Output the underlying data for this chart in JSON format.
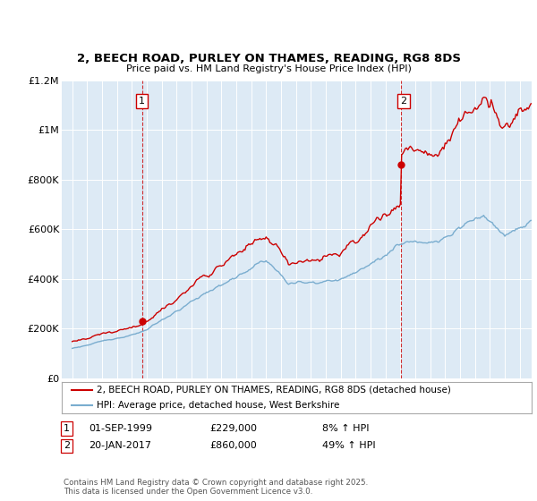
{
  "title": "2, BEECH ROAD, PURLEY ON THAMES, READING, RG8 8DS",
  "subtitle": "Price paid vs. HM Land Registry's House Price Index (HPI)",
  "legend_line1": "2, BEECH ROAD, PURLEY ON THAMES, READING, RG8 8DS (detached house)",
  "legend_line2": "HPI: Average price, detached house, West Berkshire",
  "annotation1_label": "1",
  "annotation1_date": "01-SEP-1999",
  "annotation1_price": "£229,000",
  "annotation1_hpi": "8% ↑ HPI",
  "annotation2_label": "2",
  "annotation2_date": "20-JAN-2017",
  "annotation2_price": "£860,000",
  "annotation2_hpi": "49% ↑ HPI",
  "footer": "Contains HM Land Registry data © Crown copyright and database right 2025.\nThis data is licensed under the Open Government Licence v3.0.",
  "price_color": "#cc0000",
  "hpi_color": "#7aadcf",
  "background_color": "#ddeaf5",
  "ylim_min": 0,
  "ylim_max": 1200000,
  "xlim_min": 1994.3,
  "xlim_max": 2025.8,
  "yticks": [
    0,
    200000,
    400000,
    600000,
    800000,
    1000000,
    1200000
  ],
  "ytick_labels": [
    "£0",
    "£200K",
    "£400K",
    "£600K",
    "£800K",
    "£1M",
    "£1.2M"
  ],
  "xticks": [
    1995,
    1996,
    1997,
    1998,
    1999,
    2000,
    2001,
    2002,
    2003,
    2004,
    2005,
    2006,
    2007,
    2008,
    2009,
    2010,
    2011,
    2012,
    2013,
    2014,
    2015,
    2016,
    2017,
    2018,
    2019,
    2020,
    2021,
    2022,
    2023,
    2024,
    2025
  ],
  "sale1_year": 1999.67,
  "sale1_price": 229000,
  "sale2_year": 2017.05,
  "sale2_price": 860000
}
